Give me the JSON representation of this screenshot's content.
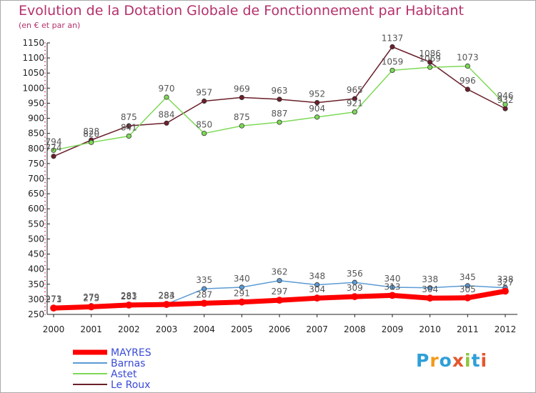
{
  "header": {
    "title": "Evolution de la Dotation Globale de Fonctionnement par Habitant",
    "subtitle": "(en € et par an)"
  },
  "logo": {
    "text": "Proxiti",
    "colors": [
      "#2f9fd8",
      "#f29a1a",
      "#2f9fd8",
      "#e4572e",
      "#8cc63f",
      "#2f9fd8",
      "#e4572e"
    ]
  },
  "chart_data": {
    "type": "line",
    "title": "Evolution de la Dotation Globale de Fonctionnement par Habitant",
    "subtitle": "(en € et par an)",
    "xlabel": "",
    "ylabel": "",
    "x": [
      2000,
      2001,
      2002,
      2003,
      2004,
      2005,
      2006,
      2007,
      2008,
      2009,
      2010,
      2011,
      2012
    ],
    "ylim": [
      250,
      1150
    ],
    "yticks": [
      250,
      300,
      350,
      400,
      450,
      500,
      550,
      600,
      650,
      700,
      750,
      800,
      850,
      900,
      950,
      1000,
      1050,
      1100,
      1150
    ],
    "grid": false,
    "legend_position": "bottom-left",
    "series": [
      {
        "name": "MAYRES",
        "color": "#ff0000",
        "values": [
          271,
          275,
          281,
          283,
          287,
          291,
          297,
          304,
          309,
          313,
          304,
          305,
          327
        ]
      },
      {
        "name": "Barnas",
        "color": "#5b9bd5",
        "values": [
          273,
          279,
          283,
          284,
          335,
          340,
          362,
          348,
          356,
          340,
          338,
          345,
          338
        ]
      },
      {
        "name": "Astet",
        "color": "#7ed957",
        "values": [
          794,
          820,
          841,
          970,
          850,
          875,
          887,
          904,
          921,
          1059,
          1069,
          1073,
          946
        ]
      },
      {
        "name": "Le Roux",
        "color": "#6b1f2a",
        "values": [
          774,
          828,
          875,
          884,
          957,
          969,
          963,
          952,
          965,
          1137,
          1086,
          996,
          932
        ]
      }
    ]
  }
}
